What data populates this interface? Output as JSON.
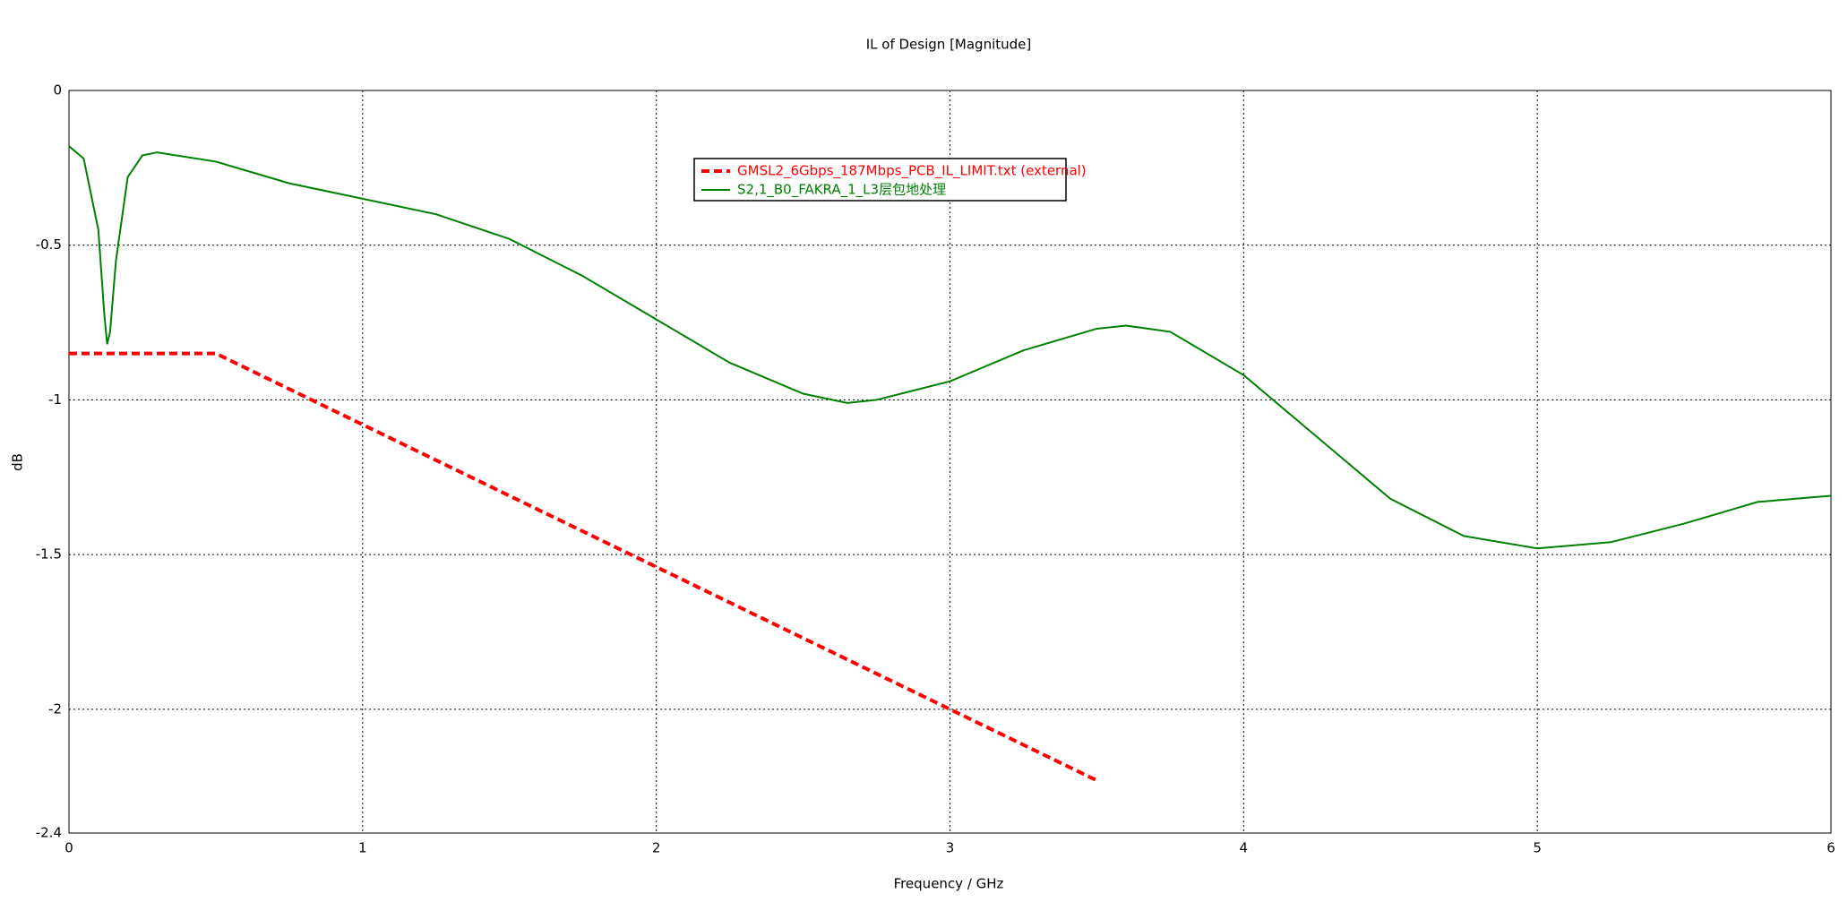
{
  "chart_data": {
    "type": "line",
    "title": "IL of Design [Magnitude]",
    "x_label": "Frequency / GHz",
    "y_label": "dB",
    "xlim": [
      0,
      6
    ],
    "ylim": [
      -2.4,
      0
    ],
    "xticks": [
      0,
      1,
      2,
      3,
      4,
      5,
      6
    ],
    "yticks": [
      -2.4,
      -2,
      -1.5,
      -1,
      -0.5,
      0
    ],
    "grid": true,
    "legend": "top-center",
    "series": [
      {
        "name": "GMSL2_6Gbps_187Mbps_PCB_IL_LIMIT.txt (external)",
        "color": "#ff0000",
        "dashed": true,
        "x": [
          0,
          0.5,
          3.5
        ],
        "values": [
          -0.85,
          -0.85,
          -2.23
        ]
      },
      {
        "name": "S2,1_B0_FAKRA_1_L3层包地处理",
        "color": "#008000",
        "dashed": false,
        "x": [
          0,
          0.05,
          0.1,
          0.12,
          0.13,
          0.14,
          0.16,
          0.2,
          0.25,
          0.3,
          0.5,
          0.75,
          1.0,
          1.25,
          1.5,
          1.75,
          2.0,
          2.25,
          2.5,
          2.65,
          2.75,
          3.0,
          3.25,
          3.5,
          3.6,
          3.75,
          4.0,
          4.25,
          4.5,
          4.75,
          5.0,
          5.25,
          5.5,
          5.75,
          6.0
        ],
        "values": [
          -0.18,
          -0.22,
          -0.45,
          -0.72,
          -0.82,
          -0.78,
          -0.55,
          -0.28,
          -0.21,
          -0.2,
          -0.23,
          -0.3,
          -0.35,
          -0.4,
          -0.48,
          -0.6,
          -0.74,
          -0.88,
          -0.98,
          -1.01,
          -1.0,
          -0.94,
          -0.84,
          -0.77,
          -0.76,
          -0.78,
          -0.92,
          -1.12,
          -1.32,
          -1.44,
          -1.48,
          -1.46,
          -1.4,
          -1.33,
          -1.31
        ]
      }
    ]
  }
}
